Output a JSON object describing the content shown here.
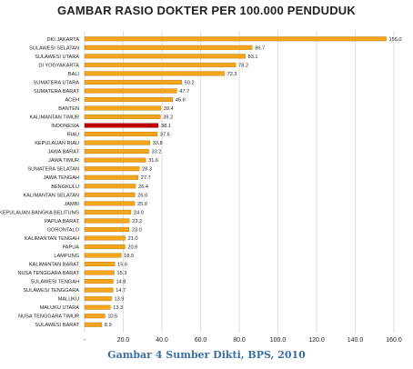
{
  "chart_data": {
    "type": "bar",
    "orientation": "horizontal",
    "title": "GAMBAR RASIO DOKTER PER 100.000 PENDUDUK",
    "categories": [
      "DKI JAKARTA",
      "SULAWESI SELATAN",
      "SULAWESI UTARA",
      "DI YOGYAKARTA",
      "BALI",
      "SUMATERA UTARA",
      "SUMATERA BARAT",
      "ACEH",
      "BANTEN",
      "KALIMANTAN TIMUR",
      "INDONESIA",
      "RIAU",
      "KEPULAUAN RIAU",
      "JAWA BARAT",
      "JAWA TIMUR",
      "SUMATERA SELATAN",
      "JAWA TENGAH",
      "BENGKULU",
      "KALIMANTAN SELATAN",
      "JAMBI",
      "KEPULAUAN BANGKA BELITUNG",
      "PAPUA BARAT",
      "GORONTALO",
      "KALIMANTAN TENGAH",
      "PAPUA",
      "LAMPUNG",
      "KALIMANTAN BARAT",
      "NUSA TENGGARA BARAT",
      "SULAWESI TENGAH",
      "SULAWESI TENGGARA",
      "MALUKU",
      "MALUKU UTARA",
      "NUSA TENGGARA TIMUR",
      "SULAWESI BARAT"
    ],
    "values": [
      156.0,
      86.7,
      83.1,
      78.2,
      72.3,
      50.2,
      47.7,
      45.6,
      39.4,
      39.2,
      38.1,
      37.6,
      33.8,
      33.2,
      31.6,
      28.3,
      27.7,
      26.4,
      26.0,
      25.9,
      24.0,
      23.2,
      23.0,
      21.0,
      20.9,
      18.9,
      15.6,
      15.3,
      14.8,
      14.7,
      13.9,
      13.3,
      10.5,
      8.9
    ],
    "value_labels": [
      "156.0",
      "86.7",
      "83.1",
      "78.2",
      "72.3",
      "50.2",
      "47.7",
      "45.6",
      "39.4",
      "39.2",
      "38.1",
      "37.6",
      "33.8",
      "33.2",
      "31.6",
      "28.3",
      "27.7",
      "26.4",
      "26.0",
      "25.9",
      "24.0",
      "23.2",
      "23.0",
      "21.0",
      "20.9",
      "18.9",
      "15.6",
      "15.3",
      "14.8",
      "14.7",
      "13.9",
      "13.3",
      "10.5",
      "8.9"
    ],
    "highlight_category": "INDONESIA",
    "xlim": [
      0,
      160
    ],
    "xticks": [
      0,
      20,
      40,
      60,
      80,
      100,
      120,
      140,
      160
    ],
    "xtick_labels": [
      "-",
      "20.0",
      "40.0",
      "60.0",
      "80.0",
      "100.0",
      "120.0",
      "140.0",
      "160.0"
    ],
    "grid": true,
    "colors": {
      "bar": "#f4a51c",
      "bar_edge": "#b06e00",
      "highlight": "#c00000",
      "grid": "#c8c8c8"
    }
  },
  "caption": "Gambar 4 Sumber Dikti, BPS, 2010"
}
